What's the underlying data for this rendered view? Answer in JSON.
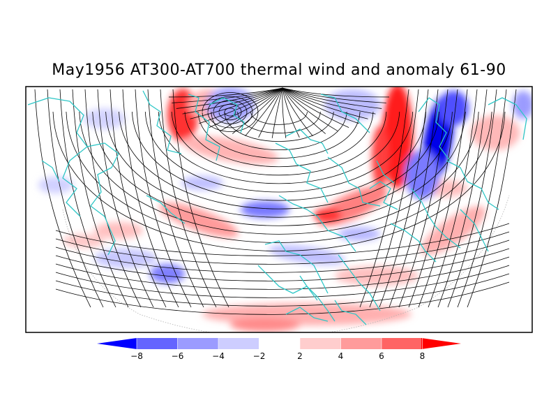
{
  "title": "May1956 AT300-AT700 thermal wind and anomaly 61-90",
  "colorbar": {
    "ticks": [
      "-8",
      "-6",
      "-4",
      "-2",
      "2",
      "4",
      "6",
      "8"
    ],
    "colors": [
      "#0000ff",
      "#6464ff",
      "#9b9bff",
      "#cdcdff",
      "#ffffff",
      "#ffcdcd",
      "#ff9b9b",
      "#ff6464",
      "#ff0000"
    ]
  },
  "colors": {
    "coastline": "#2ec6c6",
    "streamline": "#000000",
    "frame": "#000000"
  }
}
